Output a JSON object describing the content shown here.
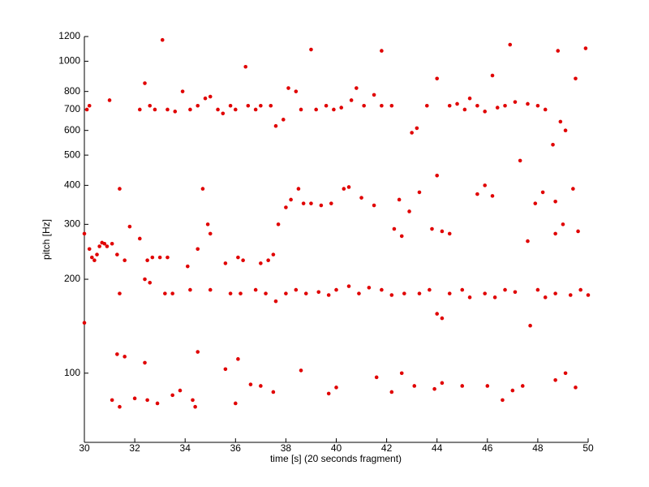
{
  "chart_data": {
    "type": "scatter",
    "xlabel": "time [s] (20 seconds fragment)",
    "ylabel": "pitch [Hz]",
    "color": "#e00000",
    "yscale": "log",
    "xlim": [
      30,
      50
    ],
    "ylim": [
      60,
      1200
    ],
    "xticks": [
      30,
      32,
      34,
      36,
      38,
      40,
      42,
      44,
      46,
      48,
      50
    ],
    "yticks": [
      100,
      200,
      300,
      400,
      500,
      600,
      700,
      800,
      1000,
      1200
    ],
    "x": [
      30.1,
      30.2,
      31.0,
      32.2,
      32.4,
      32.6,
      32.8,
      33.1,
      33.3,
      33.6,
      33.9,
      34.2,
      34.5,
      34.8,
      35.0,
      35.3,
      35.5,
      35.8,
      36.0,
      36.4,
      36.5,
      36.8,
      37.0,
      37.4,
      37.6,
      37.9,
      38.1,
      38.4,
      38.6,
      39.0,
      39.2,
      39.6,
      39.9,
      40.2,
      40.6,
      40.8,
      41.1,
      41.5,
      41.8,
      41.8,
      42.2,
      43.0,
      43.2,
      43.6,
      44.0,
      44.5,
      44.8,
      45.1,
      45.3,
      45.6,
      45.9,
      46.2,
      46.4,
      46.7,
      46.9,
      47.1,
      47.3,
      47.6,
      48.0,
      48.3,
      48.6,
      48.8,
      48.9,
      49.1,
      49.5,
      49.9,
      30.0,
      30.2,
      30.3,
      30.4,
      30.5,
      30.6,
      30.7,
      30.8,
      30.9,
      31.1,
      31.3,
      31.4,
      31.6,
      31.8,
      32.2,
      32.5,
      32.7,
      33.0,
      33.3,
      34.1,
      34.5,
      34.7,
      34.9,
      35.0,
      35.6,
      36.1,
      36.3,
      37.0,
      37.3,
      37.5,
      37.7,
      38.0,
      38.2,
      38.5,
      38.7,
      39.0,
      39.4,
      39.8,
      40.3,
      40.5,
      41.0,
      41.5,
      42.3,
      42.5,
      42.6,
      42.9,
      43.3,
      43.8,
      44.0,
      44.2,
      44.5,
      45.6,
      45.9,
      46.2,
      47.6,
      47.9,
      48.2,
      48.7,
      48.7,
      49.0,
      49.4,
      49.6,
      30.0,
      31.4,
      32.4,
      32.6,
      33.2,
      33.5,
      34.2,
      35.0,
      35.8,
      36.2,
      36.8,
      37.2,
      37.6,
      38.0,
      38.4,
      38.8,
      39.3,
      39.7,
      40.0,
      40.5,
      40.9,
      41.3,
      41.8,
      42.2,
      42.7,
      43.3,
      43.7,
      44.0,
      44.2,
      44.5,
      45.0,
      45.3,
      45.9,
      46.3,
      46.7,
      47.1,
      47.7,
      48.0,
      48.3,
      48.7,
      49.3,
      49.7,
      50.0,
      31.1,
      31.3,
      31.4,
      31.6,
      32.0,
      32.4,
      32.5,
      32.9,
      33.5,
      33.8,
      34.3,
      34.4,
      34.5,
      35.6,
      36.0,
      36.1,
      36.6,
      37.0,
      37.5,
      38.6,
      39.7,
      40.0,
      41.6,
      42.2,
      42.6,
      43.1,
      43.9,
      44.2,
      45.0,
      46.0,
      46.6,
      47.0,
      47.4,
      48.7,
      49.1,
      49.5
    ],
    "values": [
      700,
      720,
      750,
      700,
      850,
      720,
      700,
      1170,
      700,
      690,
      800,
      700,
      720,
      760,
      770,
      700,
      680,
      720,
      700,
      960,
      720,
      700,
      720,
      720,
      620,
      650,
      820,
      800,
      700,
      1090,
      700,
      720,
      700,
      710,
      750,
      820,
      720,
      780,
      720,
      1080,
      720,
      590,
      610,
      720,
      880,
      720,
      730,
      700,
      760,
      720,
      690,
      900,
      710,
      720,
      1130,
      740,
      480,
      730,
      720,
      700,
      540,
      1080,
      640,
      600,
      880,
      1100,
      280,
      250,
      235,
      230,
      240,
      255,
      262,
      260,
      255,
      260,
      240,
      390,
      230,
      295,
      270,
      230,
      235,
      235,
      235,
      220,
      250,
      390,
      300,
      280,
      225,
      235,
      230,
      225,
      230,
      240,
      300,
      340,
      360,
      390,
      350,
      350,
      345,
      350,
      390,
      395,
      365,
      345,
      290,
      360,
      275,
      330,
      380,
      290,
      430,
      285,
      280,
      375,
      400,
      370,
      265,
      350,
      380,
      280,
      355,
      300,
      390,
      285,
      145,
      180,
      200,
      195,
      180,
      180,
      185,
      185,
      180,
      180,
      185,
      180,
      170,
      180,
      185,
      180,
      182,
      178,
      185,
      190,
      180,
      188,
      185,
      178,
      180,
      180,
      185,
      155,
      150,
      180,
      185,
      175,
      180,
      175,
      185,
      182,
      142,
      185,
      175,
      180,
      178,
      185,
      178,
      82,
      115,
      78,
      113,
      83,
      108,
      82,
      80,
      85,
      88,
      82,
      78,
      117,
      103,
      80,
      111,
      92,
      91,
      87,
      102,
      86,
      90,
      97,
      87,
      100,
      91,
      89,
      93,
      91,
      91,
      82,
      88,
      91,
      95,
      100,
      90
    ]
  }
}
